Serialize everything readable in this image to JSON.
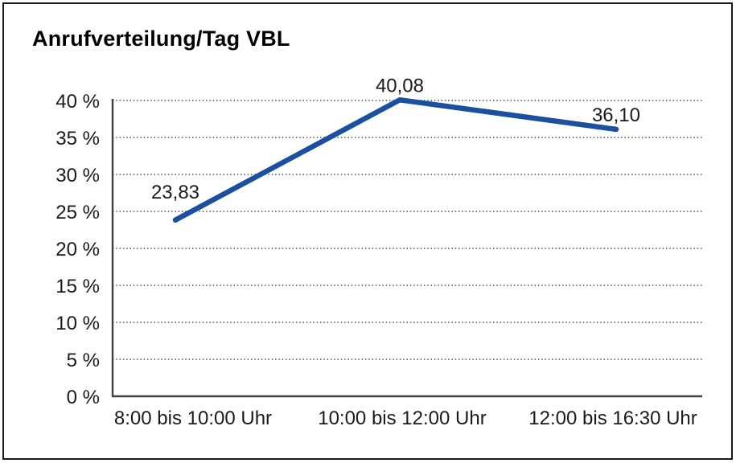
{
  "chart": {
    "title": "Anrufverteilung/Tag VBL"
  },
  "chart_data": {
    "type": "line",
    "title": "Anrufverteilung/Tag VBL",
    "categories": [
      "8:00 bis 10:00 Uhr",
      "10:00 bis 12:00 Uhr",
      "12:00 bis 16:30 Uhr"
    ],
    "values": [
      23.83,
      40.08,
      36.1
    ],
    "value_labels": [
      "23,83",
      "40,08",
      "36,10"
    ],
    "xlabel": "",
    "ylabel": "",
    "ylim": [
      0,
      40
    ],
    "ytick_step": 5,
    "ytick_labels": [
      "0 %",
      "5 %",
      "10 %",
      "15 %",
      "20 %",
      "25 %",
      "30 %",
      "35 %",
      "40 %"
    ],
    "grid": "horizontal-dotted",
    "legend": "none"
  },
  "colors": {
    "line": "#1a509e",
    "axis": "#404040",
    "grid": "#4d4d4d",
    "text": "#1a1a1a",
    "border": "#1a1a1a",
    "background": "#ffffff"
  }
}
